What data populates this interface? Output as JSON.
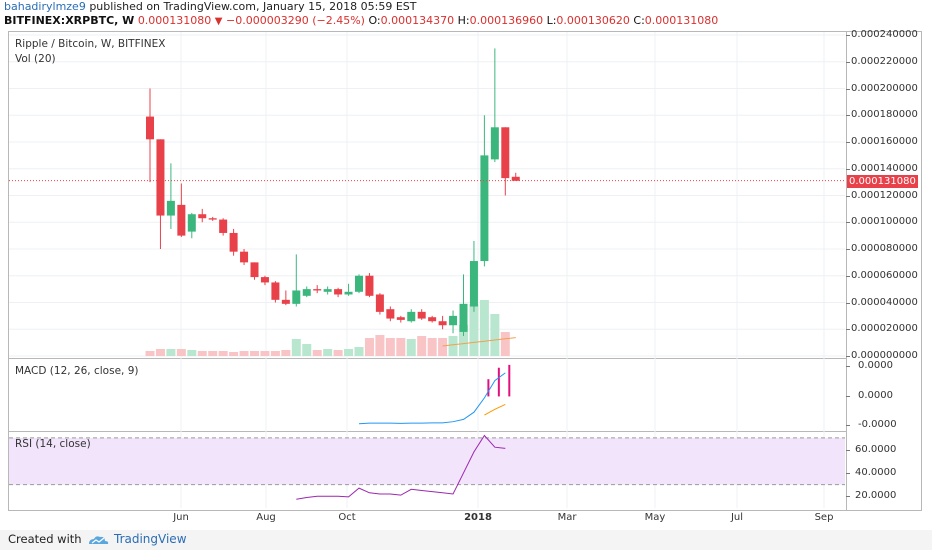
{
  "header": {
    "author": "bahadirylmze9",
    "published": " published on TradingView.com, January 15, 2018 05:59 EST",
    "symbol": "BITFINEX:XRPBTC, W",
    "last": "0.000131080",
    "change": "−0.000003290 (−2.45%)",
    "o_label": "O:",
    "o_value": "0.000134370",
    "h_label": "H:",
    "h_value": "0.000136960",
    "l_label": "L:",
    "l_value": "0.000130620",
    "c_label": "C:",
    "c_value": "0.000131080"
  },
  "panes": {
    "main_title": "Ripple / Bitcoin, W, BITFINEX",
    "vol_title": "Vol (20)",
    "macd_title": "MACD (12, 26, close, 9)",
    "rsi_title": "RSI (14, close)"
  },
  "price_badge": "0.00013108​0",
  "footer": {
    "created": "Created with",
    "brand": "TradingView"
  },
  "colors": {
    "up": "#3bb77e",
    "down": "#e8414a",
    "macd": "#2196f3",
    "signal": "#ff9800",
    "hist": "#e0117f",
    "rsi": "#9c27b0",
    "rsi_band": "#f1e4fb"
  },
  "chart_data": [
    {
      "type": "candlestick",
      "title": "Ripple / Bitcoin, W, BITFINEX",
      "ylim": [
        0,
        0.00024
      ],
      "y_ticks": [
        "0.000240000",
        "0.000220000",
        "0.000200000",
        "0.000180000",
        "0.000160000",
        "0.000140000",
        "0.000120000",
        "0.000100000",
        "0.000080000",
        "0.000060000",
        "0.000040000",
        "0.000020000",
        "0.000000000"
      ],
      "x_ticks": [
        "Jun",
        "Aug",
        "Oct",
        "2018",
        "Mar",
        "May",
        "Jul",
        "Sep"
      ],
      "last_price": 0.00013108,
      "candles": [
        {
          "o": 0.000179,
          "h": 0.0002,
          "l": 0.00013,
          "c": 0.000162
        },
        {
          "o": 0.000162,
          "h": 0.000162,
          "l": 8e-05,
          "c": 0.000105
        },
        {
          "o": 0.000105,
          "h": 0.000144,
          "l": 9.5e-05,
          "c": 0.000116
        },
        {
          "o": 0.000113,
          "h": 0.000129,
          "l": 8.9e-05,
          "c": 9e-05
        },
        {
          "o": 9.3e-05,
          "h": 0.000107,
          "l": 8.8e-05,
          "c": 0.000106
        },
        {
          "o": 0.000106,
          "h": 0.00011,
          "l": 0.0001,
          "c": 0.000103
        },
        {
          "o": 0.000103,
          "h": 0.000104,
          "l": 0.000101,
          "c": 0.000102
        },
        {
          "o": 0.000102,
          "h": 0.000103,
          "l": 9e-05,
          "c": 9.2e-05
        },
        {
          "o": 9.2e-05,
          "h": 9.5e-05,
          "l": 7.5e-05,
          "c": 7.8e-05
        },
        {
          "o": 7.8e-05,
          "h": 8e-05,
          "l": 6.8e-05,
          "c": 7e-05
        },
        {
          "o": 7e-05,
          "h": 7e-05,
          "l": 5.7e-05,
          "c": 5.9e-05
        },
        {
          "o": 5.9e-05,
          "h": 6e-05,
          "l": 5.3e-05,
          "c": 5.5e-05
        },
        {
          "o": 5.5e-05,
          "h": 5.6e-05,
          "l": 4e-05,
          "c": 4.2e-05
        },
        {
          "o": 4.2e-05,
          "h": 4.9e-05,
          "l": 3.8e-05,
          "c": 3.9e-05
        },
        {
          "o": 3.9e-05,
          "h": 7.6e-05,
          "l": 3.7e-05,
          "c": 4.9e-05
        },
        {
          "o": 4.5e-05,
          "h": 5.2e-05,
          "l": 4.4e-05,
          "c": 5e-05
        },
        {
          "o": 5e-05,
          "h": 5.3e-05,
          "l": 4.7e-05,
          "c": 4.9e-05
        },
        {
          "o": 4.8e-05,
          "h": 5.2e-05,
          "l": 4.6e-05,
          "c": 5e-05
        },
        {
          "o": 5e-05,
          "h": 5.1e-05,
          "l": 4.4e-05,
          "c": 4.6e-05
        },
        {
          "o": 4.6e-05,
          "h": 5.4e-05,
          "l": 4.5e-05,
          "c": 4.8e-05
        },
        {
          "o": 4.8e-05,
          "h": 6.1e-05,
          "l": 4.7e-05,
          "c": 6e-05
        },
        {
          "o": 6e-05,
          "h": 6.2e-05,
          "l": 4.4e-05,
          "c": 4.5e-05
        },
        {
          "o": 4.6e-05,
          "h": 4.7e-05,
          "l": 3.1e-05,
          "c": 3.3e-05
        },
        {
          "o": 3.5e-05,
          "h": 3.7e-05,
          "l": 2.6e-05,
          "c": 2.8e-05
        },
        {
          "o": 2.9e-05,
          "h": 3e-05,
          "l": 2.5e-05,
          "c": 2.7e-05
        },
        {
          "o": 2.6e-05,
          "h": 3.5e-05,
          "l": 2.5e-05,
          "c": 3.3e-05
        },
        {
          "o": 3.3e-05,
          "h": 3.5e-05,
          "l": 2.7e-05,
          "c": 2.8e-05
        },
        {
          "o": 2.9e-05,
          "h": 3e-05,
          "l": 2.5e-05,
          "c": 2.6e-05
        },
        {
          "o": 2.6e-05,
          "h": 3e-05,
          "l": 2e-05,
          "c": 2.3e-05
        },
        {
          "o": 2.3e-05,
          "h": 3.4e-05,
          "l": 1.7e-05,
          "c": 3e-05
        },
        {
          "o": 1.8e-05,
          "h": 6.1e-05,
          "l": 1.5e-05,
          "c": 3.9e-05
        },
        {
          "o": 3.7e-05,
          "h": 8.6e-05,
          "l": 3.3e-05,
          "c": 7.1e-05
        },
        {
          "o": 7.1e-05,
          "h": 0.00018,
          "l": 6.7e-05,
          "c": 0.00015
        },
        {
          "o": 0.000147,
          "h": 0.00023,
          "l": 0.000145,
          "c": 0.000171
        },
        {
          "o": 0.000171,
          "h": 0.000171,
          "l": 0.00012,
          "c": 0.000133
        },
        {
          "o": 0.000134,
          "h": 0.000137,
          "l": 0.000131,
          "c": 0.000131
        }
      ],
      "volume": [
        5,
        7,
        7,
        7,
        6,
        5,
        5,
        5,
        4,
        5,
        5,
        5,
        5,
        6,
        17,
        12,
        6,
        7,
        6,
        7,
        9,
        18,
        21,
        18,
        18,
        17,
        20,
        18,
        18,
        20,
        31,
        52,
        56,
        42,
        24,
        0
      ]
    },
    {
      "type": "line",
      "title": "MACD (12, 26, close, 9)",
      "y_ticks": [
        "0.0000",
        "0.0000",
        "-0.0000"
      ],
      "series": [
        {
          "x": [
            20,
            21,
            22,
            23,
            24,
            25,
            26,
            27,
            28,
            29,
            30,
            31,
            32,
            33,
            34
          ],
          "values": [
            -9.5e-06,
            -9.3e-06,
            -9.3e-06,
            -9.3e-06,
            -9.4e-06,
            -9.3e-06,
            -9.3e-06,
            -9.2e-06,
            -9.2e-06,
            -8.8e-06,
            -8e-06,
            -5.5e-06,
            -5e-07,
            5.5e-06,
            8.2e-06
          ]
        },
        {
          "x": [
            32,
            33,
            34
          ],
          "values": [
            -6.5e-06,
            -4.5e-06,
            -2.8e-06
          ]
        }
      ],
      "histogram": {
        "x": [
          32,
          33,
          34
        ],
        "values": [
          6e-06,
          1e-05,
          1.1e-05
        ]
      }
    },
    {
      "type": "line",
      "title": "RSI (14, close)",
      "ylim": [
        10,
        75
      ],
      "y_ticks": [
        "60.0000",
        "40.0000",
        "20.0000"
      ],
      "bands": [
        30,
        70
      ],
      "series": [
        {
          "x": [
            14,
            15,
            16,
            17,
            18,
            19,
            20,
            21,
            22,
            23,
            24,
            25,
            26,
            27,
            28,
            29,
            30,
            31,
            32,
            33,
            34
          ],
          "values": [
            17.5,
            19,
            20,
            20,
            20,
            19.5,
            27,
            23,
            22,
            22,
            21,
            26,
            25,
            24,
            23,
            22,
            40,
            58,
            72,
            62,
            61
          ]
        }
      ]
    }
  ]
}
